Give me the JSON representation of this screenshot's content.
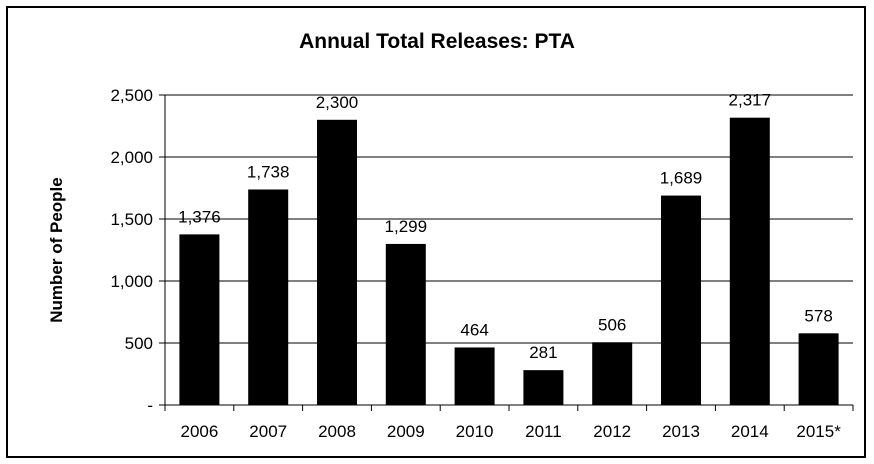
{
  "chart_data": {
    "type": "bar",
    "title": "Annual Total Releases: PTA",
    "xlabel": "",
    "ylabel": "Number of People",
    "categories": [
      "2006",
      "2007",
      "2008",
      "2009",
      "2010",
      "2011",
      "2012",
      "2013",
      "2014",
      "2015*"
    ],
    "values": [
      1376,
      1738,
      2300,
      1299,
      464,
      281,
      506,
      1689,
      2317,
      578
    ],
    "data_labels": [
      "1,376",
      "1,738",
      "2,300",
      "1,299",
      "464",
      "281",
      "506",
      "1,689",
      "2,317",
      "578"
    ],
    "ylim": [
      0,
      2500
    ],
    "yticks": [
      0,
      500,
      1000,
      1500,
      2000,
      2500
    ],
    "ytick_labels": [
      "-",
      "500",
      "1,000",
      "1,500",
      "2,000",
      "2,500"
    ],
    "grid": true,
    "legend": "none",
    "bar_color": "#000000"
  }
}
